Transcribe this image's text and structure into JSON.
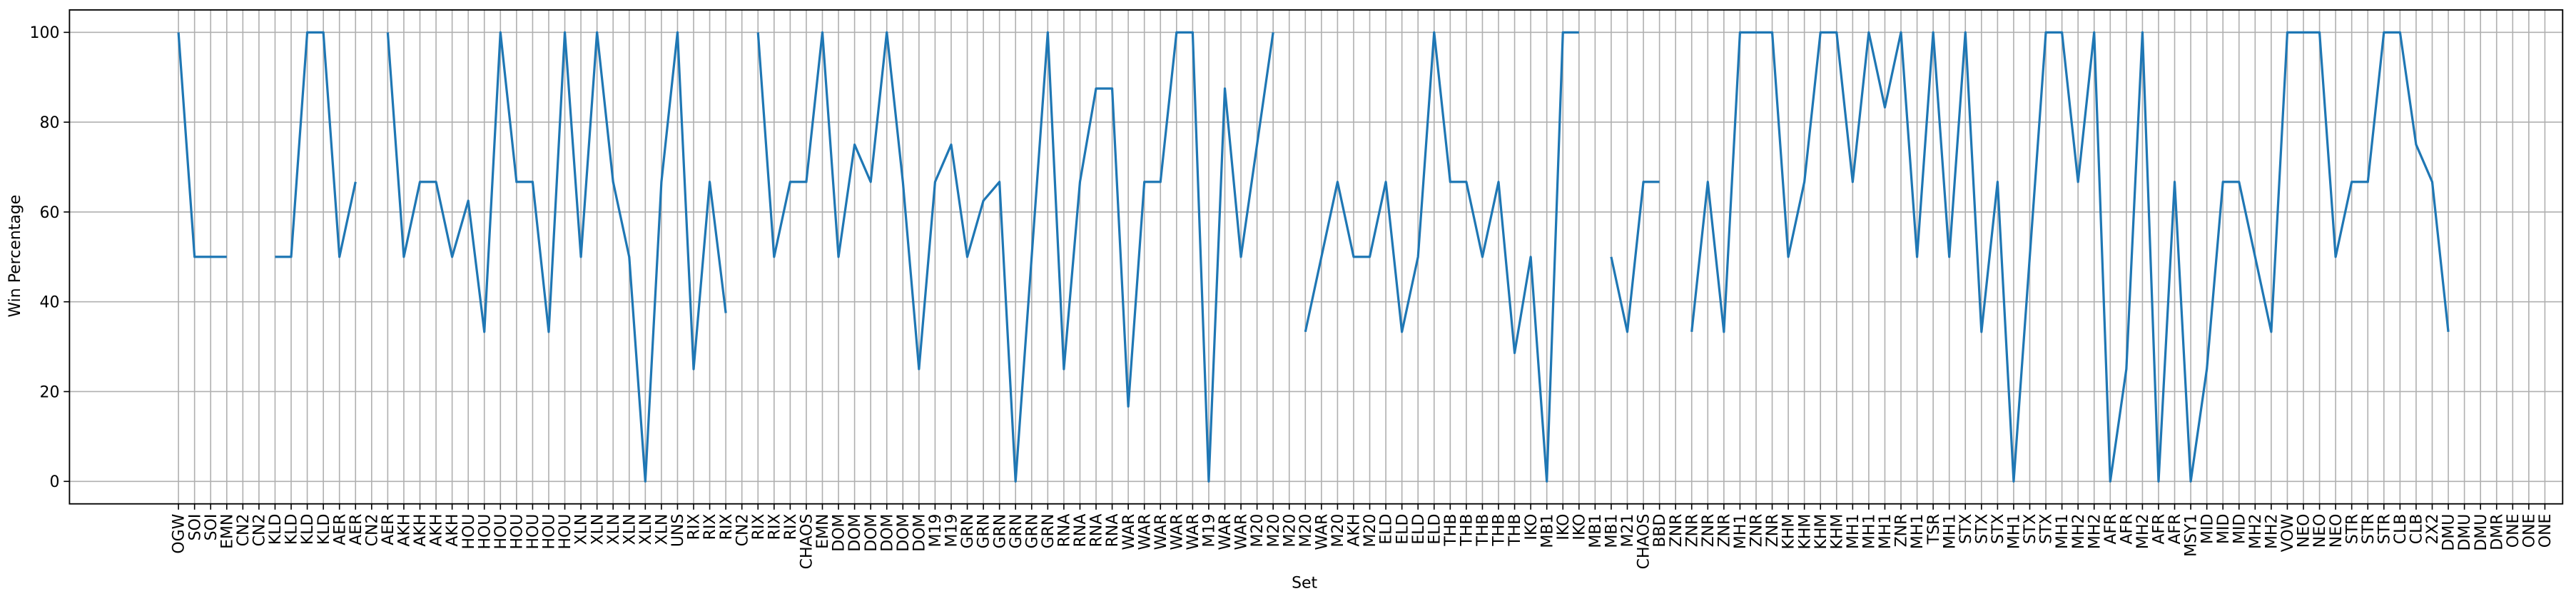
{
  "chart_data": {
    "type": "line",
    "x_label": "Set",
    "y_label": "Win Percentage",
    "color": "#1f77b4",
    "grid": true,
    "categories": [
      "OGW",
      "SOI",
      "SOI",
      "EMN",
      "CN2",
      "CN2",
      "KLD",
      "KLD",
      "KLD",
      "KLD",
      "AER",
      "AER",
      "CN2",
      "AER",
      "AKH",
      "AKH",
      "AKH",
      "AKH",
      "HOU",
      "HOU",
      "HOU",
      "HOU",
      "HOU",
      "HOU",
      "HOU",
      "XLN",
      "XLN",
      "XLN",
      "XLN",
      "XLN",
      "XLN",
      "UNS",
      "RIX",
      "RIX",
      "RIX",
      "CN2",
      "RIX",
      "RIX",
      "RIX",
      "CHAOS",
      "EMN",
      "DOM",
      "DOM",
      "DOM",
      "DOM",
      "DOM",
      "DOM",
      "M19",
      "M19",
      "GRN",
      "GRN",
      "GRN",
      "GRN",
      "GRN",
      "GRN",
      "RNA",
      "RNA",
      "RNA",
      "RNA",
      "WAR",
      "WAR",
      "WAR",
      "WAR",
      "WAR",
      "M19",
      "WAR",
      "WAR",
      "M20",
      "M20",
      "M20",
      "M20",
      "WAR",
      "M20",
      "AKH",
      "M20",
      "ELD",
      "ELD",
      "ELD",
      "ELD",
      "THB",
      "THB",
      "THB",
      "THB",
      "THB",
      "IKO",
      "MB1",
      "IKO",
      "IKO",
      "MB1",
      "MB1",
      "M21",
      "CHAOS",
      "BBD",
      "ZNR",
      "ZNR",
      "ZNR",
      "ZNR",
      "MH1",
      "ZNR",
      "ZNR",
      "KHM",
      "KHM",
      "KHM",
      "KHM",
      "MH1",
      "MH1",
      "MH1",
      "ZNR",
      "MH1",
      "TSR",
      "MH1",
      "STX",
      "STX",
      "STX",
      "MH1",
      "STX",
      "STX",
      "MH1",
      "MH2",
      "MH2",
      "AFR",
      "AFR",
      "MH2",
      "AFR",
      "AFR",
      "MSY1",
      "MID",
      "MID",
      "MID",
      "MH2",
      "MH2",
      "VOW",
      "NEO",
      "NEO",
      "NEO",
      "STR",
      "STR",
      "STR",
      "CLB",
      "CLB",
      "2X2",
      "DMU",
      "DMU",
      "DMU",
      "DMR",
      "ONE",
      "ONE",
      "ONE"
    ],
    "values": [
      100,
      50,
      50,
      50,
      null,
      null,
      50,
      50,
      100,
      100,
      50,
      66.7,
      null,
      100,
      50,
      66.7,
      66.7,
      50,
      62.5,
      33.3,
      100,
      66.7,
      66.7,
      33.3,
      100,
      50,
      100,
      66.7,
      50,
      0,
      66.7,
      100,
      25,
      66.7,
      37.5,
      null,
      100,
      50,
      66.7,
      66.7,
      100,
      50,
      75,
      66.7,
      100,
      66.7,
      25,
      66.7,
      75,
      50,
      62.5,
      66.7,
      0,
      50,
      100,
      25,
      66.7,
      87.5,
      87.5,
      16.7,
      66.7,
      66.7,
      100,
      100,
      0,
      87.5,
      50,
      75,
      100,
      null,
      33.3,
      50,
      66.7,
      50,
      50,
      66.7,
      33.3,
      50,
      100,
      66.7,
      66.7,
      50,
      66.7,
      28.6,
      50,
      0,
      100,
      100,
      null,
      50,
      33.3,
      66.7,
      66.7,
      null,
      33.3,
      66.7,
      33.3,
      100,
      100,
      100,
      50,
      66.7,
      100,
      100,
      66.7,
      100,
      83.3,
      100,
      50,
      100,
      50,
      100,
      33.3,
      66.7,
      0,
      50,
      100,
      100,
      66.7,
      100,
      0,
      25,
      100,
      0,
      66.7,
      0,
      25,
      66.7,
      66.7,
      50,
      33.3,
      100,
      100,
      100,
      50,
      66.7,
      66.7,
      100,
      100,
      75,
      66.7,
      33.3,
      null,
      null,
      null,
      null,
      null,
      null
    ],
    "ylim": [
      -5,
      105
    ],
    "yticks": [
      0,
      20,
      40,
      60,
      80,
      100
    ]
  }
}
